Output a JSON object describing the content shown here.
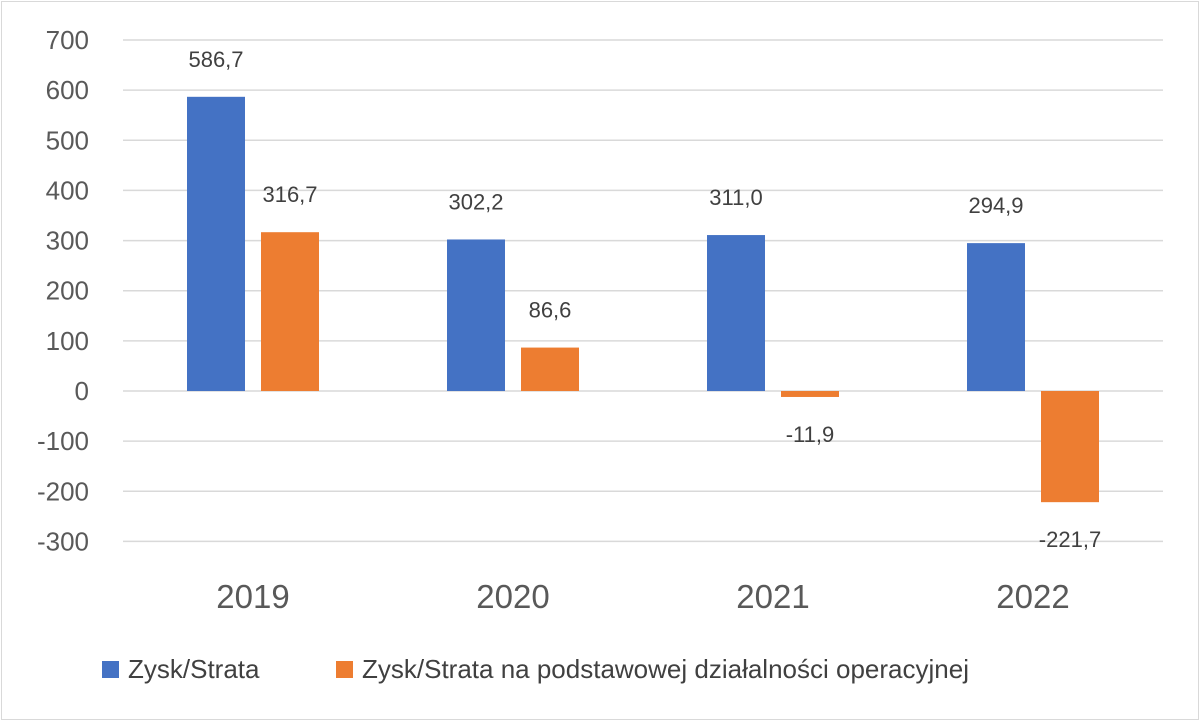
{
  "chart_data": {
    "type": "bar",
    "categories": [
      "2019",
      "2020",
      "2021",
      "2022"
    ],
    "series": [
      {
        "name": "Zysk/Strata",
        "values": [
          586.7,
          302.2,
          311.0,
          294.9
        ],
        "labels": [
          "586,7",
          "302,2",
          "311,0",
          "294,9"
        ],
        "color": "#4472C4"
      },
      {
        "name": "Zysk/Strata na podstawowej działalności operacyjnej",
        "values": [
          316.7,
          86.6,
          -11.9,
          -221.7
        ],
        "labels": [
          "316,7",
          "86,6",
          "-11,9",
          "-221,7"
        ],
        "color": "#ED7D31"
      }
    ],
    "ylim": [
      -300,
      700
    ],
    "yticks": [
      "700",
      "600",
      "500",
      "400",
      "300",
      "200",
      "100",
      "0",
      "-100",
      "-200",
      "-300"
    ],
    "ytick_values": [
      700,
      600,
      500,
      400,
      300,
      200,
      100,
      0,
      -100,
      -200,
      -300
    ],
    "grid": true,
    "legend_position": "bottom"
  }
}
